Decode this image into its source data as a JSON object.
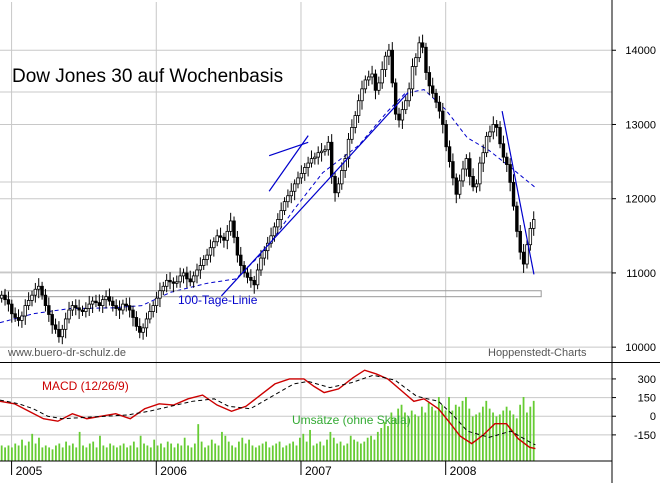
{
  "colors": {
    "background": "#ffffff",
    "grid": "#c8c8c8",
    "candle": "#000000",
    "moving_average": "#0000cc",
    "trend_line": "#0000cc",
    "macd": "#cc0000",
    "signal": "#000000",
    "volume": "#66cc33",
    "support_band": "#999999"
  },
  "chart_data": [
    {
      "type": "candlestick",
      "title": "Dow Jones 30 auf Wochenbasis",
      "watermark_left": "www.buero-dr-schulz.de",
      "watermark_right": "Hoppenstedt-Charts",
      "annotation": "100-Tage-Linie",
      "grid": true,
      "y_axis_side": "right",
      "ylim": [
        9800,
        14650
      ],
      "y_ticks": [
        10000,
        11000,
        12000,
        13000,
        14000
      ],
      "x_ticks": [
        "2005",
        "2006",
        "2007",
        "2008"
      ],
      "x_range": [
        2004.92,
        2008.79
      ],
      "support_band": [
        10680,
        10760
      ],
      "closes": [
        10700,
        10640,
        10580,
        10450,
        10400,
        10360,
        10420,
        10560,
        10630,
        10700,
        10780,
        10820,
        10700,
        10560,
        10440,
        10300,
        10240,
        10140,
        10240,
        10380,
        10500,
        10560,
        10530,
        10500,
        10480,
        10520,
        10580,
        10620,
        10600,
        10560,
        10640,
        10680,
        10620,
        10560,
        10520,
        10500,
        10580,
        10560,
        10500,
        10400,
        10280,
        10200,
        10260,
        10380,
        10480,
        10560,
        10660,
        10760,
        10820,
        10900,
        10880,
        10860,
        10880,
        10960,
        11000,
        10920,
        10880,
        10960,
        11040,
        11100,
        11180,
        11240,
        11340,
        11420,
        11500,
        11480,
        11440,
        11560,
        11700,
        11480,
        11240,
        11100,
        11000,
        10940,
        10900,
        10840,
        11040,
        11200,
        11300,
        11400,
        11500,
        11620,
        11720,
        11840,
        11960,
        12040,
        12100,
        12200,
        12280,
        12340,
        12420,
        12480,
        12540,
        12560,
        12620,
        12640,
        12660,
        12760,
        12300,
        12080,
        12200,
        12380,
        12540,
        12800,
        12960,
        13120,
        13320,
        13480,
        13600,
        13640,
        13680,
        13460,
        13560,
        13740,
        13920,
        14000,
        13560,
        13140,
        13060,
        13200,
        13320,
        13480,
        13780,
        13900,
        14100,
        14040,
        13700,
        13520,
        13420,
        13300,
        13180,
        13000,
        12700,
        12500,
        12280,
        12060,
        12240,
        12400,
        12540,
        12300,
        12160,
        12200,
        12480,
        12620,
        12840,
        12900,
        13000,
        12960,
        12740,
        12560,
        12460,
        12220,
        11900,
        11560,
        11280,
        11120,
        11380,
        11600,
        11720
      ],
      "moving_average": [
        [
          2004.92,
          10330
        ],
        [
          2005.15,
          10450
        ],
        [
          2005.4,
          10520
        ],
        [
          2005.7,
          10530
        ],
        [
          2005.9,
          10560
        ],
        [
          2006.1,
          10740
        ],
        [
          2006.35,
          10860
        ],
        [
          2006.55,
          10920
        ],
        [
          2006.75,
          11300
        ],
        [
          2006.95,
          11850
        ],
        [
          2007.15,
          12350
        ],
        [
          2007.4,
          12720
        ],
        [
          2007.6,
          13180
        ],
        [
          2007.72,
          13420
        ],
        [
          2007.85,
          13470
        ],
        [
          2008.0,
          13200
        ],
        [
          2008.15,
          12820
        ],
        [
          2008.3,
          12650
        ],
        [
          2008.45,
          12420
        ],
        [
          2008.62,
          12150
        ]
      ],
      "trend_lines": [
        [
          [
            2006.45,
            10690
          ],
          [
            2007.74,
            13430
          ]
        ],
        [
          [
            2006.78,
            12100
          ],
          [
            2007.05,
            12850
          ]
        ],
        [
          [
            2006.78,
            12580
          ],
          [
            2007.05,
            12760
          ]
        ],
        [
          [
            2008.39,
            13180
          ],
          [
            2008.61,
            10980
          ]
        ]
      ],
      "y_tick_labels": [
        "10000",
        "11000",
        "12000",
        "13000",
        "14000"
      ]
    },
    {
      "type": "line",
      "series": [
        {
          "name": "MACD (12/26/9)"
        },
        {
          "name": "Umsätze (ohne Skala)"
        }
      ],
      "ylim": [
        -360,
        420
      ],
      "y_ticks": [
        300,
        150,
        0,
        -150
      ],
      "y_tick_labels": [
        "300",
        "150",
        "0",
        "-150"
      ],
      "macd": [
        [
          2004.92,
          120
        ],
        [
          2005.02,
          100
        ],
        [
          2005.12,
          40
        ],
        [
          2005.22,
          -20
        ],
        [
          2005.32,
          -40
        ],
        [
          2005.42,
          20
        ],
        [
          2005.52,
          -20
        ],
        [
          2005.62,
          0
        ],
        [
          2005.72,
          20
        ],
        [
          2005.82,
          -20
        ],
        [
          2005.92,
          60
        ],
        [
          2006.02,
          100
        ],
        [
          2006.12,
          90
        ],
        [
          2006.22,
          140
        ],
        [
          2006.32,
          170
        ],
        [
          2006.42,
          90
        ],
        [
          2006.52,
          40
        ],
        [
          2006.62,
          80
        ],
        [
          2006.72,
          170
        ],
        [
          2006.82,
          260
        ],
        [
          2006.92,
          300
        ],
        [
          2007.02,
          300
        ],
        [
          2007.09,
          240
        ],
        [
          2007.16,
          190
        ],
        [
          2007.26,
          220
        ],
        [
          2007.36,
          310
        ],
        [
          2007.44,
          370
        ],
        [
          2007.52,
          340
        ],
        [
          2007.6,
          300
        ],
        [
          2007.7,
          200
        ],
        [
          2007.78,
          120
        ],
        [
          2007.85,
          140
        ],
        [
          2007.95,
          60
        ],
        [
          2008.02,
          -40
        ],
        [
          2008.1,
          -160
        ],
        [
          2008.18,
          -220
        ],
        [
          2008.26,
          -150
        ],
        [
          2008.34,
          -60
        ],
        [
          2008.42,
          -60
        ],
        [
          2008.5,
          -180
        ],
        [
          2008.58,
          -250
        ],
        [
          2008.62,
          -260
        ]
      ],
      "signal": [
        [
          2004.92,
          130
        ],
        [
          2005.05,
          100
        ],
        [
          2005.15,
          60
        ],
        [
          2005.25,
          0
        ],
        [
          2005.35,
          -20
        ],
        [
          2005.5,
          -10
        ],
        [
          2005.65,
          0
        ],
        [
          2005.8,
          10
        ],
        [
          2005.95,
          40
        ],
        [
          2006.1,
          80
        ],
        [
          2006.25,
          120
        ],
        [
          2006.4,
          140
        ],
        [
          2006.5,
          80
        ],
        [
          2006.65,
          60
        ],
        [
          2006.8,
          160
        ],
        [
          2006.95,
          260
        ],
        [
          2007.05,
          280
        ],
        [
          2007.2,
          230
        ],
        [
          2007.35,
          270
        ],
        [
          2007.5,
          330
        ],
        [
          2007.65,
          290
        ],
        [
          2007.8,
          160
        ],
        [
          2007.95,
          120
        ],
        [
          2008.05,
          10
        ],
        [
          2008.15,
          -120
        ],
        [
          2008.3,
          -170
        ],
        [
          2008.45,
          -120
        ],
        [
          2008.6,
          -220
        ],
        [
          2008.62,
          -230
        ]
      ],
      "volume_relative": [
        0.16,
        0.14,
        0.16,
        0.14,
        0.18,
        0.16,
        0.22,
        0.16,
        0.2,
        0.28,
        0.18,
        0.24,
        0.14,
        0.16,
        0.14,
        0.12,
        0.16,
        0.18,
        0.14,
        0.2,
        0.16,
        0.18,
        0.14,
        0.3,
        0.16,
        0.14,
        0.18,
        0.2,
        0.14,
        0.26,
        0.16,
        0.14,
        0.18,
        0.16,
        0.14,
        0.16,
        0.18,
        0.14,
        0.16,
        0.2,
        0.14,
        0.26,
        0.18,
        0.16,
        0.14,
        0.22,
        0.16,
        0.18,
        0.14,
        0.2,
        0.18,
        0.14,
        0.18,
        0.16,
        0.24,
        0.16,
        0.14,
        0.18,
        0.38,
        0.2,
        0.14,
        0.16,
        0.22,
        0.18,
        0.16,
        0.3,
        0.26,
        0.2,
        0.16,
        0.14,
        0.2,
        0.24,
        0.18,
        0.22,
        0.16,
        0.14,
        0.16,
        0.18,
        0.2,
        0.14,
        0.16,
        0.18,
        0.2,
        0.14,
        0.16,
        0.18,
        0.2,
        0.16,
        0.24,
        0.28,
        0.2,
        0.32,
        0.16,
        0.18,
        0.2,
        0.16,
        0.22,
        0.3,
        0.24,
        0.18,
        0.2,
        0.16,
        0.18,
        0.26,
        0.22,
        0.2,
        0.18,
        0.2,
        0.24,
        0.26,
        0.22,
        0.3,
        0.34,
        0.4,
        0.36,
        0.5,
        0.44,
        0.54,
        0.58,
        0.5,
        0.46,
        0.52,
        0.48,
        0.46,
        0.56,
        0.5,
        0.6,
        0.56,
        0.52,
        0.66,
        0.58,
        0.52,
        0.66,
        0.52,
        0.58,
        0.56,
        0.62,
        0.66,
        0.54,
        0.46,
        0.48,
        0.5,
        0.56,
        0.62,
        0.54,
        0.5,
        0.46,
        0.48,
        0.52,
        0.56,
        0.52,
        0.48,
        0.44,
        0.58,
        0.66,
        0.5,
        0.56,
        0.62
      ]
    }
  ]
}
